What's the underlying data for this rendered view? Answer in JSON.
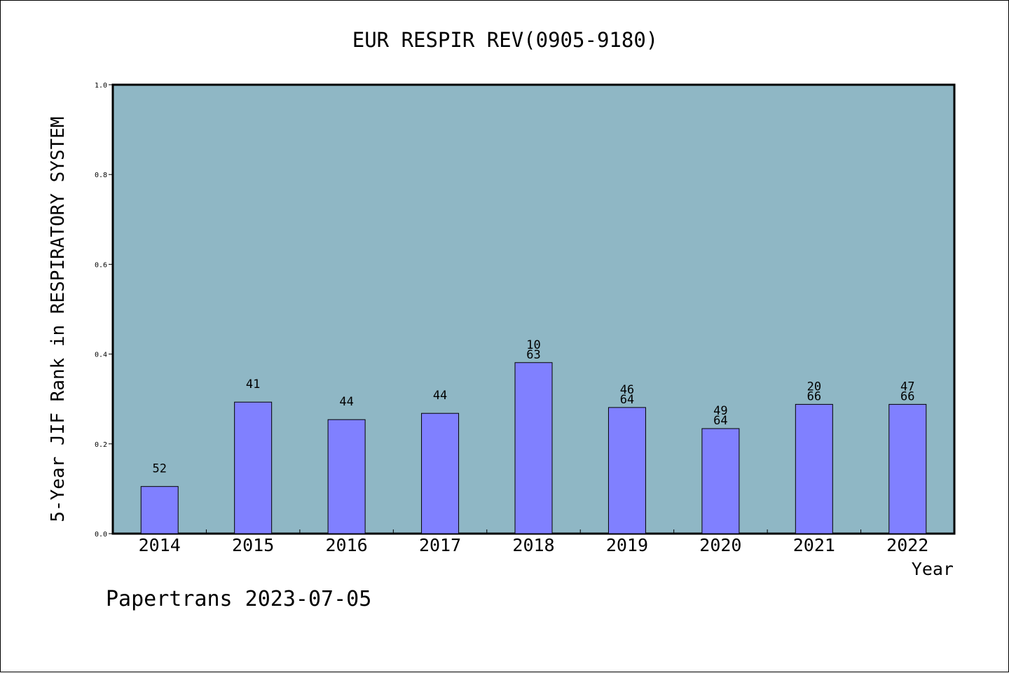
{
  "chart_data": {
    "type": "bar",
    "title": "EUR RESPIR REV(0905-9180)",
    "xlabel": "Year",
    "ylabel": "5-Year JIF Rank in RESPIRATORY SYSTEM",
    "ylim": [
      0,
      1.0
    ],
    "yticks": [
      "0.0",
      "0.2",
      "0.4",
      "0.6",
      "0.8",
      "1.0"
    ],
    "categories": [
      "2014",
      "2015",
      "2016",
      "2017",
      "2018",
      "2019",
      "2020",
      "2021",
      "2022"
    ],
    "values": [
      0.105,
      0.293,
      0.254,
      0.268,
      0.381,
      0.281,
      0.234,
      0.288,
      0.288
    ],
    "labels": [
      [
        "52"
      ],
      [
        "41"
      ],
      [
        "44"
      ],
      [
        "44"
      ],
      [
        "10",
        "63"
      ],
      [
        "46",
        "64"
      ],
      [
        "49",
        "64"
      ],
      [
        "20",
        "66"
      ],
      [
        "47",
        "66"
      ]
    ],
    "colors": {
      "plot_background": "#8fb7c5",
      "bar_fill": "#8080ff",
      "axis": "#000000"
    },
    "grid": false
  },
  "footer": {
    "credit": "Papertrans 2023-07-05"
  }
}
